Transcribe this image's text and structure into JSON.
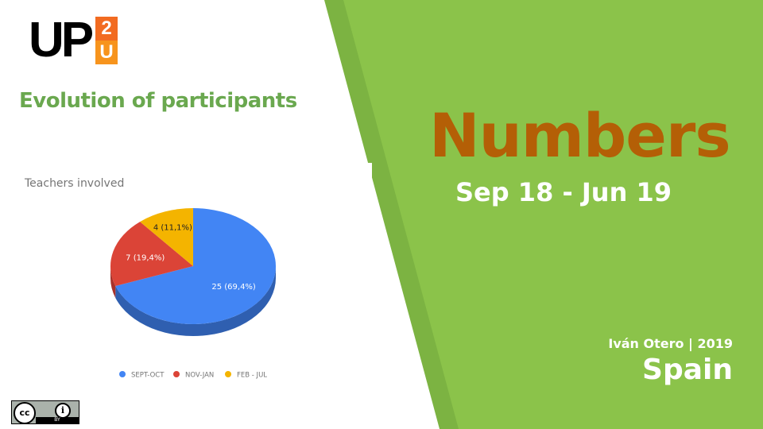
{
  "logo": {
    "text": "UP",
    "badge_top": "2",
    "badge_bottom": "U"
  },
  "slide": {
    "heading": "Evolution of participants",
    "big_title": "Numbers",
    "period": "Sep 18 - Jun 19",
    "author": "Iván Otero | 2019",
    "country": "Spain"
  },
  "license": {
    "icon1": "cc",
    "icon2": "i",
    "label": "BY"
  },
  "colors": {
    "light_green": "#8bc34a",
    "dark_green": "#7cb342",
    "title_orange": "#b45f06",
    "heading_green": "#6aa84f"
  },
  "chart_data": {
    "type": "pie",
    "title": "Teachers involved",
    "categories": [
      "SEPT-OCT",
      "NOV-JAN",
      "FEB - JUL"
    ],
    "values": [
      25,
      7,
      4
    ],
    "labels": [
      "25 (69,4%)",
      "7 (19,4%)",
      "4 (11,1%)"
    ],
    "colors": [
      "#4285f4",
      "#db4437",
      "#f4b400"
    ],
    "side_colors": [
      "#2f5fb0",
      "#a8322a",
      "#b88700"
    ],
    "legend": "bottom",
    "style": "3d"
  }
}
